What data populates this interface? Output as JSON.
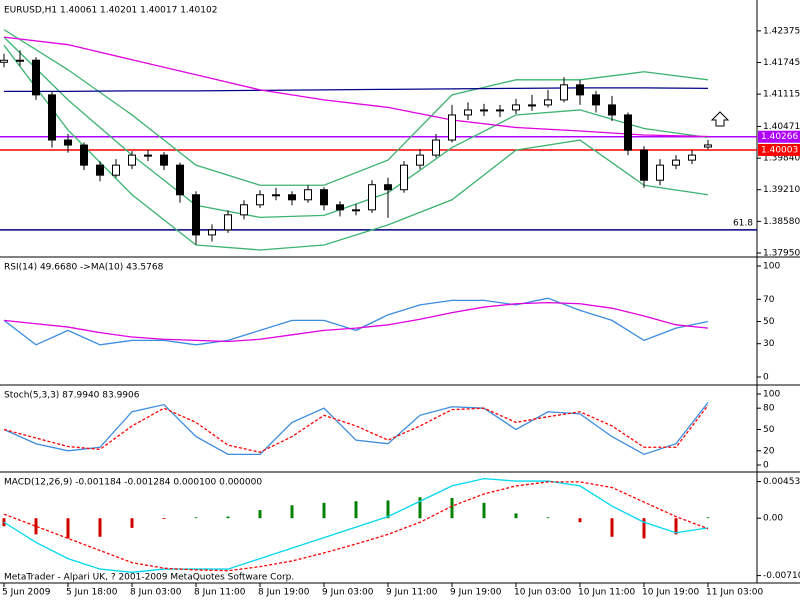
{
  "chart_data": [
    {
      "type": "candlestick",
      "title": "EURUSD,H1  1.40061 1.40201 1.40017 1.40102",
      "ylim": [
        1.3791,
        1.4299
      ],
      "yticks": [
        1.42375,
        1.41745,
        1.41115,
        1.40471,
        {
          "value": 1.3984,
          "label": "1.39840"
        },
        {
          "value": 1.3921,
          "label": "1.39210"
        },
        {
          "value": 1.3858,
          "label": "1.38580"
        },
        {
          "value": 1.3795,
          "label": "1.37950"
        }
      ],
      "candles": {
        "open": [
          1.4175,
          1.4179,
          1.4179,
          1.411,
          1.402,
          1.401,
          1.397,
          1.395,
          1.397,
          1.399,
          1.399,
          1.397,
          1.3911,
          1.3831,
          1.3841,
          1.3871,
          1.3891,
          1.3911,
          1.3911,
          1.3901,
          1.3921,
          1.3891,
          1.3881,
          1.3881,
          1.3931,
          1.3921,
          1.397,
          1.399,
          1.402,
          1.407,
          1.408,
          1.408,
          1.408,
          1.409,
          1.409,
          1.41,
          1.413,
          1.411,
          1.409,
          1.407,
          1.4,
          1.394,
          1.397,
          1.398,
          1.40061
        ],
        "high": [
          1.4192,
          1.4199,
          1.4185,
          1.4118,
          1.4032,
          1.4015,
          1.3978,
          1.3982,
          1.3998,
          1.4001,
          1.3996,
          1.3975,
          1.3918,
          1.3852,
          1.388,
          1.39,
          1.392,
          1.3925,
          1.3918,
          1.393,
          1.3926,
          1.3898,
          1.3892,
          1.394,
          1.3945,
          1.3978,
          1.4002,
          1.4032,
          1.409,
          1.4095,
          1.4092,
          1.409,
          1.4102,
          1.411,
          1.412,
          1.4145,
          1.414,
          1.4118,
          1.4108,
          1.4075,
          1.4008,
          1.3982,
          1.399,
          1.4,
          1.40201
        ],
        "low": [
          1.4165,
          1.4168,
          1.41,
          1.4005,
          1.3995,
          1.396,
          1.3938,
          1.3945,
          1.3962,
          1.3978,
          1.396,
          1.3895,
          1.3812,
          1.3818,
          1.3835,
          1.3862,
          1.3885,
          1.39,
          1.389,
          1.3895,
          1.388,
          1.3868,
          1.387,
          1.3875,
          1.3865,
          1.3915,
          1.3962,
          1.3985,
          1.4015,
          1.406,
          1.4068,
          1.4066,
          1.4072,
          1.4078,
          1.4085,
          1.4095,
          1.409,
          1.4075,
          1.4058,
          1.399,
          1.3925,
          1.393,
          1.3962,
          1.3972,
          1.40017
        ],
        "close": [
          1.4179,
          1.4179,
          1.411,
          1.402,
          1.401,
          1.397,
          1.395,
          1.397,
          1.399,
          1.399,
          1.397,
          1.3911,
          1.3831,
          1.3841,
          1.3871,
          1.3891,
          1.3911,
          1.3911,
          1.3901,
          1.3921,
          1.3891,
          1.3881,
          1.3881,
          1.3931,
          1.3921,
          1.397,
          1.399,
          1.402,
          1.407,
          1.408,
          1.408,
          1.408,
          1.409,
          1.409,
          1.41,
          1.413,
          1.411,
          1.409,
          1.407,
          1.4,
          1.394,
          1.397,
          1.398,
          1.399,
          1.40102
        ],
        "up_color": "#ffffff",
        "down_color": "#000000"
      },
      "overlays": [
        {
          "color": "#3cb371",
          "values": [
            1.424,
            1.416,
            1.407,
            1.397,
            1.393,
            1.393,
            1.398,
            1.411,
            1.414,
            1.414,
            1.4156,
            1.414
          ]
        },
        {
          "color": "#3cb371",
          "values": [
            1.4225,
            1.41,
            1.399,
            1.389,
            1.3866,
            1.387,
            1.3915,
            1.4005,
            1.407,
            1.408,
            1.4043,
            1.4025
          ]
        },
        {
          "color": "#3cb371",
          "values": [
            1.4209,
            1.404,
            1.3911,
            1.3811,
            1.3801,
            1.3811,
            1.3851,
            1.3901,
            1.4,
            1.402,
            1.393,
            1.3911
          ]
        },
        {
          "color": "#00008b",
          "values": [
            1.4117,
            1.4117,
            1.4118,
            1.4118,
            1.4119,
            1.412,
            1.4121,
            1.4122,
            1.4123,
            1.4124,
            1.4124,
            1.4123
          ]
        },
        {
          "color": "#e000e0",
          "values": [
            1.4225,
            1.421,
            1.418,
            1.415,
            1.412,
            1.41,
            1.4085,
            1.406,
            1.4045,
            1.4038,
            1.403,
            1.4027
          ]
        }
      ],
      "levels": [
        {
          "value": 1.40266,
          "color": "#b000ff",
          "price_label": true
        },
        {
          "value": 1.40003,
          "color": "#ff0000",
          "price_label": true
        },
        {
          "value": 1.3841,
          "color": "#000080",
          "name": "61.8"
        }
      ]
    },
    {
      "type": "line",
      "title": "RSI(14) 49.6680  ->MA(10) 43.5768",
      "ylim": [
        0,
        100
      ],
      "yticks": [
        100,
        70,
        50,
        30,
        0
      ],
      "series": [
        {
          "color": "#3c8ce0",
          "style": "solid",
          "values": [
            51,
            29,
            42,
            29,
            33,
            33,
            29,
            33,
            42,
            51,
            51,
            42,
            56,
            65,
            69,
            69,
            65,
            71,
            60,
            51,
            33,
            44,
            50
          ]
        },
        {
          "color": "#e000e0",
          "style": "solid",
          "values": [
            51,
            48,
            45,
            40,
            36,
            34,
            33,
            32,
            34,
            38,
            42,
            44,
            47,
            52,
            58,
            63,
            66,
            67,
            66,
            62,
            55,
            47,
            44
          ]
        }
      ]
    },
    {
      "type": "line",
      "title": "Stoch(5,3,3) 87.9940 83.9906",
      "ylim": [
        0,
        100
      ],
      "yticks": [
        100,
        80,
        50,
        20,
        0
      ],
      "series": [
        {
          "color": "#3c8ce0",
          "style": "solid",
          "values": [
            50,
            30,
            20,
            25,
            75,
            85,
            40,
            15,
            15,
            60,
            80,
            35,
            30,
            70,
            82,
            80,
            50,
            75,
            72,
            40,
            15,
            30,
            88
          ]
        },
        {
          "color": "#ff0000",
          "style": "dashed",
          "values": [
            50,
            38,
            26,
            22,
            55,
            80,
            60,
            28,
            18,
            40,
            70,
            55,
            35,
            55,
            78,
            80,
            60,
            68,
            75,
            55,
            25,
            25,
            84
          ]
        }
      ]
    },
    {
      "type": "line",
      "title": "MACD(12,26,9) -0.001184 -0.001284 0.000100 0.000000",
      "ylim": [
        -0.0079,
        0.0056
      ],
      "yticks": [
        0.004539,
        {
          "value": 0,
          "label": "0.00"
        },
        -0.007104
      ],
      "categories": [
        "5 Jun 2009",
        null,
        "5 Jun 18:00",
        null,
        "8 Jun 03:00",
        null,
        "8 Jun 11:00",
        null,
        "8 Jun 19:00",
        null,
        "9 Jun 03:00",
        null,
        "9 Jun 11:00",
        null,
        "9 Jun 19:00",
        null,
        "10 Jun 03:00",
        null,
        "10 Jun 11:00",
        null,
        "10 Jun 19:00",
        null,
        "11 Jun 03:00"
      ],
      "series": [
        {
          "style": "histogram",
          "up_color": "#008000",
          "down_color": "#d00000",
          "values": [
            -0.001,
            -0.002,
            -0.0025,
            -0.0023,
            -0.0012,
            -0.0001,
            0.0001,
            0.0002,
            0.001,
            0.0016,
            0.0019,
            0.0021,
            0.0022,
            0.0026,
            0.0025,
            0.0019,
            0.0006,
            0.0001,
            -0.0005,
            -0.0023,
            -0.0025,
            -0.002,
            0.0001
          ]
        },
        {
          "color": "#00d8f0",
          "style": "solid",
          "values": [
            -0.0005,
            -0.003,
            -0.005,
            -0.0063,
            -0.0067,
            -0.0063,
            -0.0063,
            -0.0063,
            -0.005,
            -0.0037,
            -0.0024,
            -0.0011,
            0.0002,
            0.0021,
            0.004,
            0.0049,
            0.0046,
            0.0046,
            0.004,
            0.0015,
            -0.0005,
            -0.0018,
            -0.0012
          ]
        },
        {
          "color": "#ff0000",
          "style": "dashed",
          "values": [
            0.0005,
            -0.001,
            -0.0025,
            -0.004,
            -0.0055,
            -0.0062,
            -0.0064,
            -0.0065,
            -0.006,
            -0.0053,
            -0.0043,
            -0.0032,
            -0.002,
            -0.0005,
            0.0015,
            0.003,
            0.004,
            0.0045,
            0.0045,
            0.0038,
            0.002,
            0.0002,
            -0.0013
          ]
        }
      ]
    }
  ],
  "footer": "MetaTrader - Alpari UK, ? 2001-2009 MetaQuotes Software Corp."
}
